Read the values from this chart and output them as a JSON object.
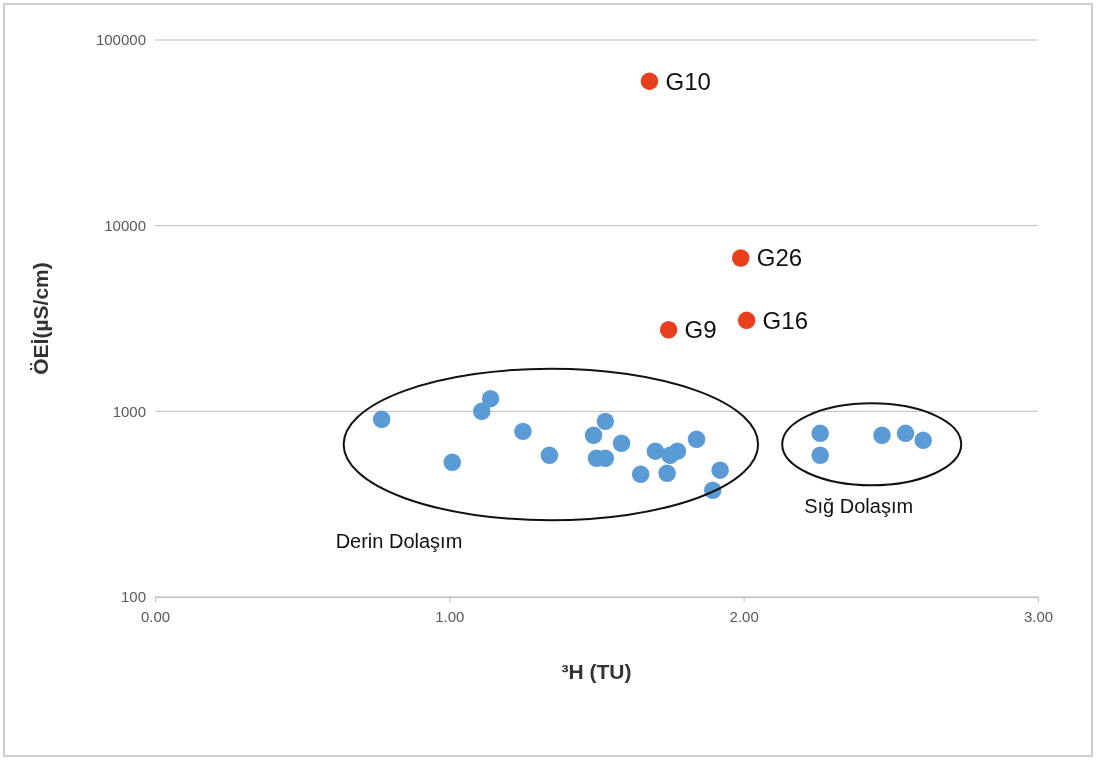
{
  "chart_data": {
    "type": "scatter",
    "xlabel": "³H (TU)",
    "ylabel": "ÖEİ(µS/cm)",
    "log": "y",
    "grid": "y",
    "marker": "circle",
    "xlim": [
      0,
      3
    ],
    "xticks": [
      {
        "value": 0,
        "label": "0.00"
      },
      {
        "value": 1,
        "label": "1.00"
      },
      {
        "value": 2,
        "label": "2.00"
      },
      {
        "value": 3,
        "label": "3.00"
      }
    ],
    "ylim": [
      100,
      100000
    ],
    "yticks": [
      100,
      1000,
      10000,
      100000
    ],
    "series": [
      {
        "color": "#e8401c",
        "x": [
          1.68,
          1.99,
          1.745,
          2.01
        ],
        "values": [
          60000,
          6700,
          2750,
          3090
        ]
      },
      {
        "color": "#5b9bd5",
        "x": [
          0.77,
          1.01,
          1.11,
          1.14,
          1.25,
          1.34,
          1.49,
          1.53,
          1.5,
          1.53,
          1.585,
          1.65,
          1.7,
          1.74,
          1.75,
          1.775,
          1.84,
          1.895,
          1.92
        ],
        "values": [
          906,
          532,
          1000,
          1170,
          780,
          580,
          743,
          883,
          559,
          559,
          673,
          458,
          610,
          464,
          580,
          610,
          707,
          376,
          482
        ]
      },
      {
        "color": "#5b9bd5",
        "x": [
          2.26,
          2.26,
          2.47,
          2.55,
          2.61
        ],
        "values": [
          761,
          580,
          743,
          761,
          698
        ]
      }
    ],
    "annotations": [
      {
        "text": "G10",
        "x": 1.68,
        "y": 60000
      },
      {
        "text": "G26",
        "x": 1.99,
        "y": 6700
      },
      {
        "text": "G9",
        "x": 1.745,
        "y": 2750
      },
      {
        "text": "G16",
        "x": 2.01,
        "y": 3090
      },
      "Derin Dolaşım",
      "Sığ Dolaşım"
    ]
  }
}
